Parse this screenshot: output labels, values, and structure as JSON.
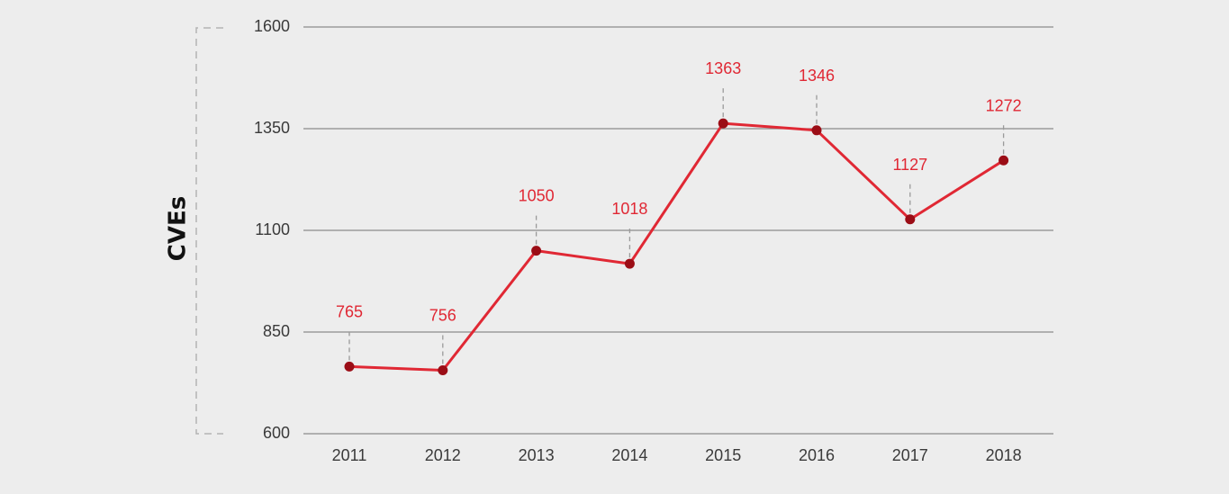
{
  "chart_data": {
    "type": "line",
    "title": "",
    "xlabel": "",
    "ylabel": "CVEs",
    "categories": [
      "2011",
      "2012",
      "2013",
      "2014",
      "2015",
      "2016",
      "2017",
      "2018"
    ],
    "series": [
      {
        "values": [
          765,
          756,
          1050,
          1018,
          1363,
          1346,
          1127,
          1272
        ]
      }
    ],
    "data_labels": [
      "765",
      "756",
      "1050",
      "1018",
      "1363",
      "1346",
      "1127",
      "1272"
    ],
    "yticks": [
      "600",
      "850",
      "1100",
      "1350",
      "1600"
    ],
    "ylim": [
      600,
      1600
    ],
    "grid": true,
    "legend": "none"
  },
  "colors": {
    "background": "#ededed",
    "line": "#e02834",
    "marker": "#9b0d16",
    "label": "#e02834",
    "grid": "#8c8c8c",
    "leader": "#9a9a9a",
    "bracket": "#b3b3b3"
  }
}
